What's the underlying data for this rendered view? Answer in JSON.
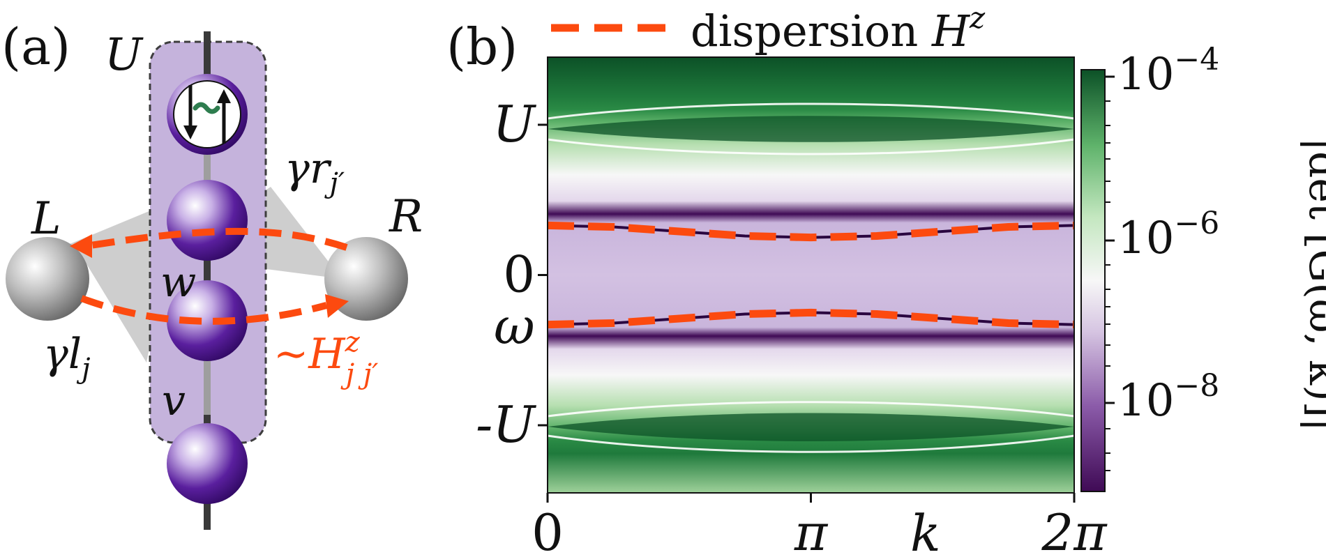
{
  "panel_a": {
    "label": "(a)",
    "U": "U",
    "L": "L",
    "R": "R",
    "w": "w",
    "v": "v",
    "gamma_l": "γl",
    "gamma_l_sub": "j",
    "gamma_r": "γr",
    "gamma_r_sub": "j′",
    "hz_base": "∼H",
    "hz_sup": "z",
    "hz_sub": "j j′",
    "colors": {
      "chain": "#4b0f8c",
      "chain_light": "#b9a0d8",
      "box": "#c5b3dc",
      "orange": "#fc4a0f",
      "grey": "#8a8a8a",
      "green": "#2e7d4f"
    }
  },
  "panel_b": {
    "label": "(b)",
    "legend": {
      "text": "dispersion ",
      "symbol": "H",
      "symbol_sup": "z"
    },
    "colorbar": {
      "label": "|det [G(ω, k)]|",
      "ticks": [
        {
          "base": "10",
          "exp": "−4"
        },
        {
          "base": "10",
          "exp": "−6"
        },
        {
          "base": "10",
          "exp": "−8"
        }
      ]
    },
    "colormap": [
      "#3f0a55",
      "#8a5aa8",
      "#d6c5e2",
      "#f7f7f7",
      "#c4e7c0",
      "#5fb36b",
      "#0c5127"
    ]
  },
  "chart_data": {
    "type": "heatmap",
    "title": "",
    "xlabel": "k",
    "ylabel": "ω",
    "xlim": [
      0,
      6.2832
    ],
    "ylim": [
      -1.45,
      1.45
    ],
    "x_ticks": [
      {
        "value": 0,
        "label": "0"
      },
      {
        "value": 3.1416,
        "label": "π"
      },
      {
        "value": 6.2832,
        "label": "2π"
      }
    ],
    "y_ticks": [
      {
        "value": 1,
        "label": "U"
      },
      {
        "value": 0,
        "label": "0"
      },
      {
        "value": -1,
        "label": "-U"
      }
    ],
    "zscale": "log",
    "zlim": [
      1e-09,
      0.0001
    ],
    "series": [
      {
        "name": "dispersion Hz (upper)",
        "style": "dashed",
        "color": "#fc4a0f",
        "k": [
          0,
          0.785,
          1.571,
          2.356,
          3.142,
          3.927,
          4.712,
          5.498,
          6.283
        ],
        "omega": [
          0.33,
          0.32,
          0.29,
          0.26,
          0.25,
          0.26,
          0.29,
          0.32,
          0.33
        ]
      },
      {
        "name": "dispersion Hz (lower)",
        "style": "dashed",
        "color": "#fc4a0f",
        "k": [
          0,
          0.785,
          1.571,
          2.356,
          3.142,
          3.927,
          4.712,
          5.498,
          6.283
        ],
        "omega": [
          -0.33,
          -0.32,
          -0.29,
          -0.26,
          -0.25,
          -0.26,
          -0.29,
          -0.32,
          -0.33
        ]
      }
    ]
  }
}
